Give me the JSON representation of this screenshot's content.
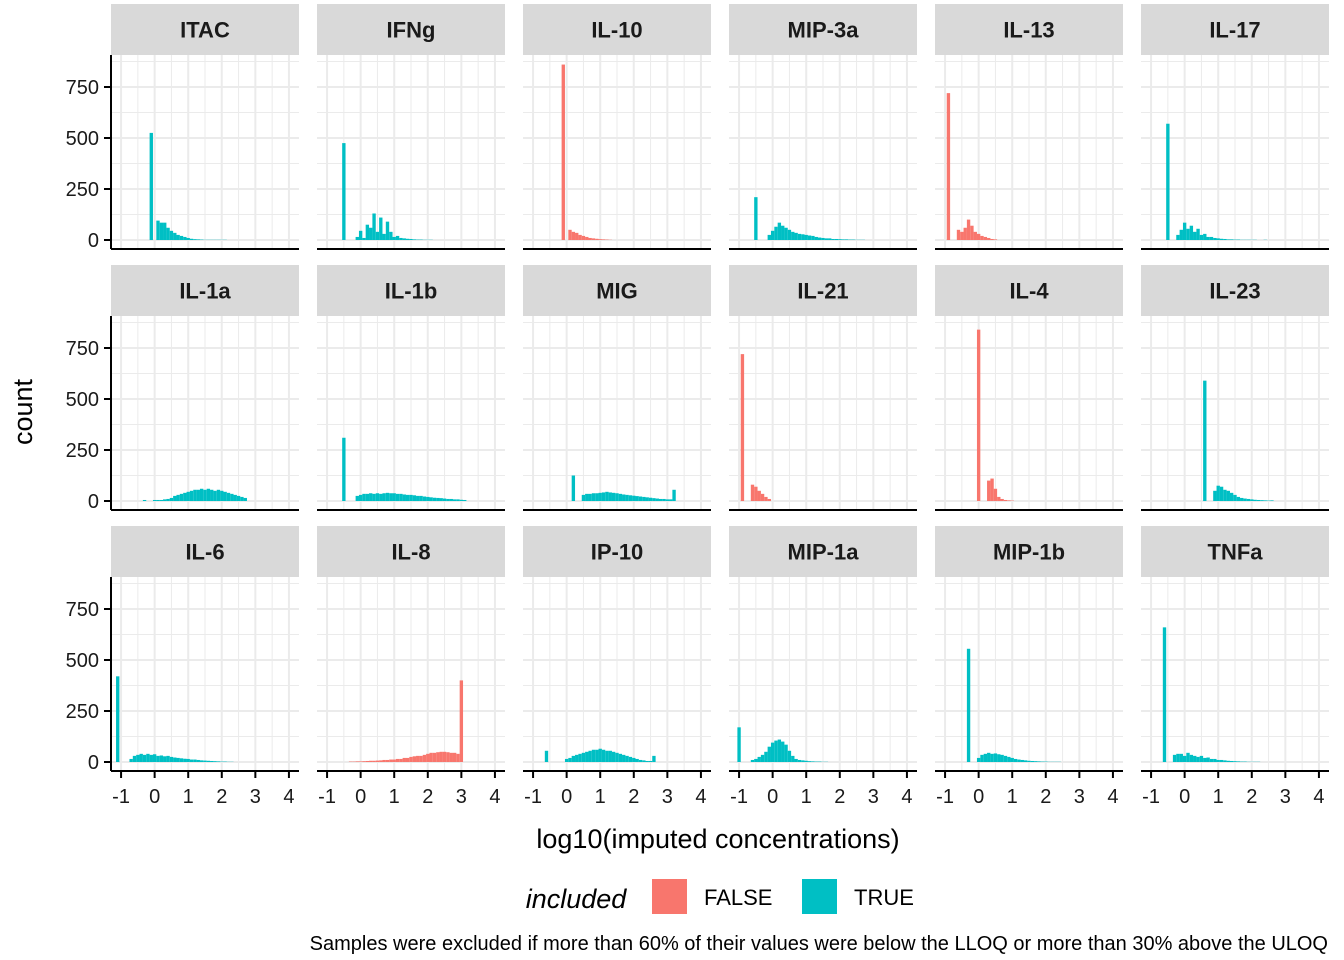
{
  "chart_data": {
    "type": "histogram-facet",
    "xlabel": "log10(imputed concentrations)",
    "ylabel": "count",
    "xlim": [
      -1.3,
      4.3
    ],
    "ylim": [
      0,
      900
    ],
    "x_ticks": [
      -1,
      0,
      1,
      2,
      3,
      4
    ],
    "x_tick_labels": [
      "-1",
      "0",
      "1",
      "2",
      "3",
      "4"
    ],
    "y_ticks": [
      0,
      250,
      500,
      750
    ],
    "y_tick_labels": [
      "0",
      "250",
      "500",
      "750"
    ],
    "grid": true,
    "bin_width": 0.1,
    "legend": {
      "title": "included",
      "position": "bottom",
      "items": [
        {
          "label": "FALSE",
          "color": "#F8766D"
        },
        {
          "label": "TRUE",
          "color": "#00BFC4"
        }
      ]
    },
    "caption": "Samples were excluded if more than 60% of their values were below the LLOQ or more than 30% above the ULOQ",
    "colors": {
      "FALSE": "#F8766D",
      "TRUE": "#00BFC4"
    },
    "panels": [
      {
        "name": "ITAC",
        "included": "TRUE",
        "x_start": -0.1,
        "counts": [
          525,
          0,
          95,
          85,
          85,
          60,
          45,
          35,
          25,
          20,
          15,
          10,
          6,
          4,
          3,
          2,
          1,
          1,
          1,
          1,
          1,
          1,
          1
        ]
      },
      {
        "name": "IFNg",
        "included": "TRUE",
        "x_start": -0.5,
        "counts": [
          475,
          0,
          0,
          0,
          15,
          45,
          10,
          75,
          60,
          130,
          40,
          110,
          30,
          90,
          40,
          15,
          20,
          10,
          8,
          6,
          5,
          3,
          2,
          2,
          1,
          1,
          1
        ]
      },
      {
        "name": "IL-10",
        "included": "FALSE",
        "x_start": -0.1,
        "counts": [
          860,
          0,
          50,
          40,
          35,
          25,
          20,
          15,
          10,
          8,
          6,
          4,
          3,
          2,
          1
        ]
      },
      {
        "name": "MIP-3a",
        "included": "TRUE",
        "x_start": -0.5,
        "counts": [
          210,
          0,
          0,
          0,
          25,
          45,
          65,
          85,
          70,
          60,
          50,
          40,
          35,
          30,
          28,
          25,
          22,
          20,
          15,
          12,
          10,
          8,
          8,
          5,
          5,
          4,
          3,
          3,
          2,
          2,
          1,
          1,
          1
        ]
      },
      {
        "name": "IL-13",
        "included": "FALSE",
        "x_start": -0.9,
        "counts": [
          720,
          0,
          0,
          50,
          40,
          60,
          100,
          70,
          40,
          30,
          20,
          15,
          10,
          5,
          3
        ]
      },
      {
        "name": "IL-17",
        "included": "TRUE",
        "x_start": -0.5,
        "counts": [
          570,
          0,
          0,
          25,
          50,
          85,
          55,
          70,
          40,
          55,
          25,
          30,
          15,
          15,
          10,
          8,
          6,
          5,
          3,
          3,
          2,
          2,
          1,
          1,
          1,
          1,
          1,
          0,
          0,
          1
        ]
      },
      {
        "name": "IL-1a",
        "included": "TRUE",
        "x_start": -0.5,
        "counts": [
          0,
          0,
          5,
          0,
          0,
          5,
          5,
          5,
          8,
          10,
          15,
          25,
          30,
          35,
          40,
          45,
          50,
          55,
          55,
          60,
          55,
          60,
          55,
          50,
          55,
          50,
          45,
          40,
          35,
          30,
          25,
          20,
          15
        ]
      },
      {
        "name": "IL-1b",
        "included": "TRUE",
        "x_start": -0.5,
        "counts": [
          310,
          0,
          0,
          0,
          25,
          30,
          35,
          35,
          38,
          35,
          38,
          35,
          38,
          40,
          38,
          38,
          35,
          35,
          32,
          30,
          30,
          28,
          25,
          25,
          22,
          20,
          18,
          16,
          15,
          14,
          12,
          10,
          10,
          8,
          8,
          6,
          5
        ]
      },
      {
        "name": "MIG",
        "included": "TRUE",
        "x_start": 0.2,
        "counts": [
          125,
          0,
          0,
          30,
          35,
          35,
          38,
          38,
          40,
          42,
          45,
          42,
          40,
          38,
          35,
          32,
          30,
          28,
          26,
          24,
          22,
          20,
          18,
          16,
          14,
          12,
          10,
          10,
          8,
          8,
          55
        ]
      },
      {
        "name": "IL-21",
        "included": "FALSE",
        "x_start": -0.9,
        "counts": [
          720,
          0,
          0,
          80,
          70,
          50,
          35,
          20,
          10
        ]
      },
      {
        "name": "IL-4",
        "included": "FALSE",
        "x_start": 0,
        "counts": [
          840,
          0,
          0,
          100,
          110,
          60,
          20,
          10,
          5,
          3,
          2
        ]
      },
      {
        "name": "IL-23",
        "included": "TRUE",
        "x_start": 0.6,
        "counts": [
          590,
          0,
          0,
          50,
          75,
          70,
          55,
          50,
          40,
          30,
          20,
          15,
          12,
          10,
          8,
          6,
          5,
          4,
          3,
          2,
          3
        ]
      },
      {
        "name": "IL-6",
        "included": "TRUE",
        "x_start": -1.1,
        "counts": [
          420,
          0,
          0,
          0,
          15,
          30,
          35,
          40,
          35,
          40,
          35,
          38,
          30,
          32,
          28,
          30,
          25,
          22,
          20,
          18,
          16,
          15,
          12,
          12,
          10,
          8,
          7,
          6,
          5,
          4,
          3,
          2,
          2,
          1,
          1
        ]
      },
      {
        "name": "IL-8",
        "included": "FALSE",
        "x_start": -0.3,
        "counts": [
          2,
          2,
          3,
          3,
          4,
          5,
          6,
          6,
          7,
          8,
          10,
          10,
          12,
          12,
          15,
          15,
          20,
          20,
          25,
          28,
          30,
          30,
          35,
          40,
          45,
          45,
          48,
          50,
          50,
          48,
          45,
          45,
          40,
          400
        ]
      },
      {
        "name": "IP-10",
        "included": "TRUE",
        "x_start": -0.6,
        "counts": [
          55,
          0,
          0,
          0,
          0,
          0,
          15,
          20,
          30,
          35,
          40,
          45,
          50,
          55,
          60,
          60,
          65,
          60,
          55,
          55,
          50,
          45,
          40,
          35,
          30,
          25,
          20,
          15,
          10,
          8,
          5,
          5,
          30
        ]
      },
      {
        "name": "MIP-1a",
        "included": "TRUE",
        "x_start": -1,
        "counts": [
          170,
          0,
          0,
          0,
          10,
          15,
          25,
          35,
          50,
          75,
          95,
          105,
          110,
          100,
          85,
          55,
          30,
          15,
          10,
          8,
          6,
          4,
          3,
          2,
          2,
          1,
          1
        ]
      },
      {
        "name": "MIP-1b",
        "included": "TRUE",
        "x_start": -0.3,
        "counts": [
          555,
          0,
          0,
          20,
          35,
          40,
          45,
          40,
          42,
          38,
          35,
          30,
          25,
          20,
          15,
          12,
          10,
          8,
          6,
          5,
          4,
          3,
          2,
          2,
          1,
          1,
          1,
          1
        ]
      },
      {
        "name": "TNFa",
        "included": "TRUE",
        "x_start": -0.6,
        "counts": [
          660,
          0,
          0,
          35,
          40,
          40,
          30,
          45,
          35,
          30,
          25,
          30,
          20,
          22,
          15,
          15,
          10,
          10,
          8,
          6,
          5,
          4,
          3,
          2,
          2,
          1,
          1,
          1,
          1
        ]
      }
    ]
  }
}
